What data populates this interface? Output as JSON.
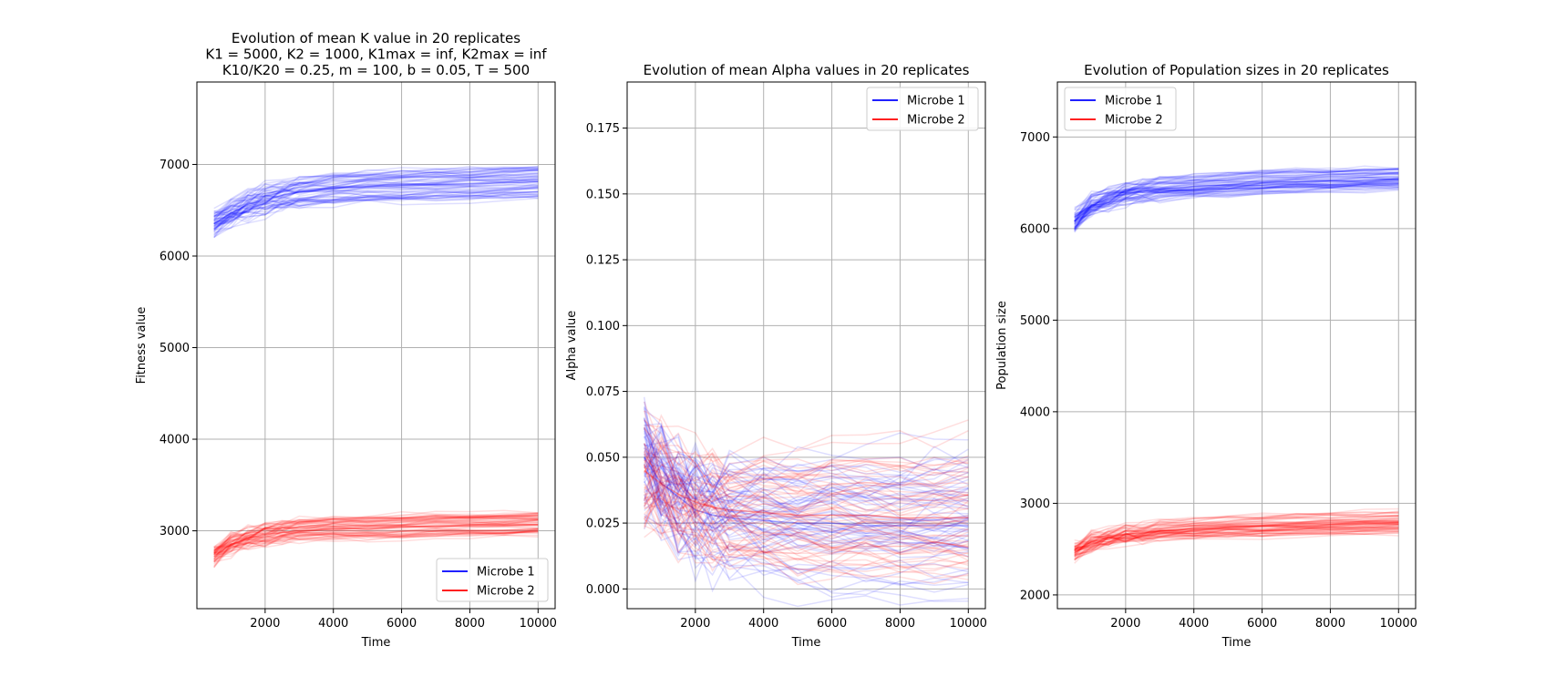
{
  "figure": {
    "background": "#ffffff"
  },
  "chart_data": [
    {
      "type": "line",
      "title_lines": [
        "Evolution of mean K value in 20 replicates",
        "K1 = 5000, K2 = 1000, K1max = inf, K2max = inf",
        "K10/K20 = 0.25, m = 100, b = 0.05, T = 500"
      ],
      "xlabel": "Time",
      "ylabel": "Fitness value",
      "xlim": [
        0,
        10500
      ],
      "ylim": [
        2150,
        7900
      ],
      "xticks": [
        2000,
        4000,
        6000,
        8000,
        10000
      ],
      "xtick_labels": [
        "2000",
        "4000",
        "6000",
        "8000",
        "10000"
      ],
      "yticks": [
        3000,
        4000,
        5000,
        6000,
        7000
      ],
      "ytick_labels": [
        "3000",
        "4000",
        "5000",
        "6000",
        "7000"
      ],
      "grid": true,
      "legend_position": "lower-right",
      "x": [
        500,
        1000,
        1500,
        2000,
        2500,
        3000,
        4000,
        5000,
        6000,
        7000,
        8000,
        9000,
        10000
      ],
      "series": [
        {
          "name": "Microbe 1",
          "color": "#0000ff",
          "n_lines": 60,
          "values": [
            6350,
            6470,
            6560,
            6620,
            6660,
            6700,
            6740,
            6760,
            6770,
            6780,
            6790,
            6800,
            6810
          ],
          "spread": 180
        },
        {
          "name": "Microbe 2",
          "color": "#ff0000",
          "n_lines": 60,
          "values": [
            2720,
            2850,
            2920,
            2960,
            2980,
            3000,
            3020,
            3030,
            3040,
            3050,
            3055,
            3060,
            3070
          ],
          "spread": 150
        }
      ]
    },
    {
      "type": "line",
      "title_lines": [
        "Evolution of mean Alpha values in 20 replicates"
      ],
      "xlabel": "Time",
      "ylabel": "Alpha value",
      "xlim": [
        0,
        10500
      ],
      "ylim": [
        -0.0075,
        0.1925
      ],
      "xticks": [
        2000,
        4000,
        6000,
        8000,
        10000
      ],
      "xtick_labels": [
        "2000",
        "4000",
        "6000",
        "8000",
        "10000"
      ],
      "yticks": [
        0,
        0.025,
        0.05,
        0.075,
        0.1,
        0.125,
        0.15,
        0.175
      ],
      "ytick_labels": [
        "0.000",
        "0.025",
        "0.050",
        "0.075",
        "0.100",
        "0.125",
        "0.150",
        "0.175"
      ],
      "grid": true,
      "legend_position": "top-right",
      "x": [
        500,
        1000,
        1500,
        2000,
        2500,
        3000,
        4000,
        5000,
        6000,
        7000,
        8000,
        9000,
        10000
      ],
      "series": [
        {
          "name": "Microbe 1",
          "color": "#0000ff",
          "n_lines": 60,
          "values": [
            0.05,
            0.04,
            0.035,
            0.03,
            0.028,
            0.027,
            0.026,
            0.025,
            0.025,
            0.024,
            0.024,
            0.024,
            0.024
          ],
          "spread": 0.03
        },
        {
          "name": "Microbe 2",
          "color": "#ff0000",
          "n_lines": 60,
          "values": [
            0.045,
            0.04,
            0.036,
            0.033,
            0.031,
            0.03,
            0.029,
            0.028,
            0.028,
            0.028,
            0.027,
            0.027,
            0.027
          ],
          "spread": 0.025
        }
      ]
    },
    {
      "type": "line",
      "title_lines": [
        "Evolution of Population sizes in 20 replicates"
      ],
      "xlabel": "Time",
      "ylabel": "Population size",
      "xlim": [
        0,
        10500
      ],
      "ylim": [
        1850,
        7600
      ],
      "xticks": [
        2000,
        4000,
        6000,
        8000,
        10000
      ],
      "xtick_labels": [
        "2000",
        "4000",
        "6000",
        "8000",
        "10000"
      ],
      "yticks": [
        2000,
        3000,
        4000,
        5000,
        6000,
        7000
      ],
      "ytick_labels": [
        "2000",
        "3000",
        "4000",
        "5000",
        "6000",
        "7000"
      ],
      "grid": true,
      "legend_position": "top-left",
      "x": [
        500,
        1000,
        1500,
        2000,
        2500,
        3000,
        4000,
        5000,
        6000,
        7000,
        8000,
        9000,
        10000
      ],
      "series": [
        {
          "name": "Microbe 1",
          "color": "#0000ff",
          "n_lines": 60,
          "values": [
            6080,
            6250,
            6330,
            6380,
            6410,
            6430,
            6460,
            6480,
            6500,
            6510,
            6520,
            6530,
            6540
          ],
          "spread": 150
        },
        {
          "name": "Microbe 2",
          "color": "#ff0000",
          "n_lines": 60,
          "values": [
            2480,
            2580,
            2630,
            2660,
            2680,
            2700,
            2720,
            2740,
            2750,
            2760,
            2770,
            2780,
            2790
          ],
          "spread": 130
        }
      ]
    }
  ]
}
